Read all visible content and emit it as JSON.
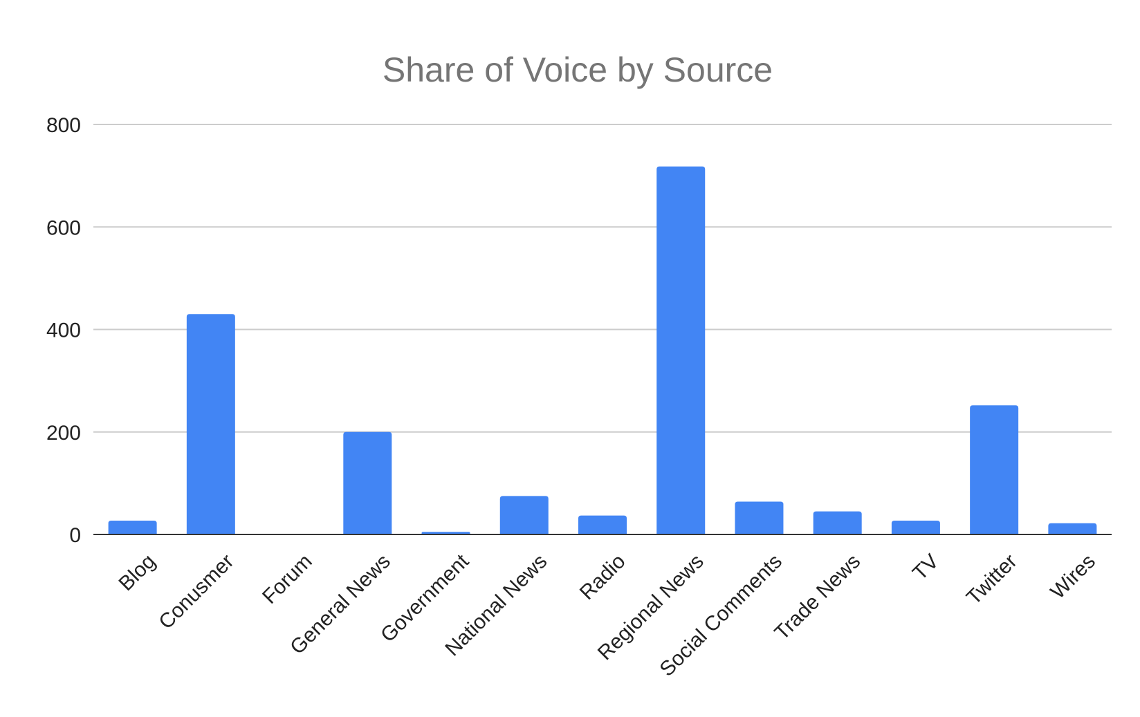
{
  "chart_data": {
    "type": "bar",
    "title": "Share of Voice by Source",
    "xlabel": "",
    "ylabel": "",
    "categories": [
      "Blog",
      "Conusmer",
      "Forum",
      "General News",
      "Government",
      "National News",
      "Radio",
      "Regional News",
      "Social Comments",
      "Trade News",
      "TV",
      "Twitter",
      "Wires"
    ],
    "series": [
      {
        "values": [
          27,
          430,
          0,
          200,
          5,
          75,
          37,
          718,
          64,
          45,
          27,
          252,
          22
        ],
        "color": "#4285f4"
      }
    ],
    "ylim": [
      0,
      800
    ],
    "yticks": [
      0,
      200,
      400,
      600,
      800
    ],
    "grid": true,
    "legend": "none",
    "gridline_color": "#cccccc",
    "baseline_color": "#333333",
    "title_color": "#757575"
  }
}
